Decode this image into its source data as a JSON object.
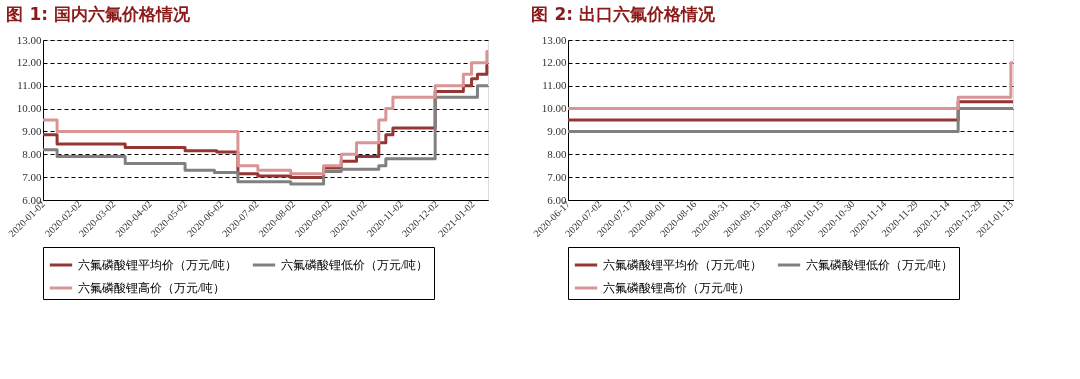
{
  "chart_data": [
    {
      "type": "step",
      "title": "图 1:  国内六氟价格情况",
      "legend": "bottom",
      "grid": "y",
      "xlim": [
        "2020-01-02",
        "2021-01-15"
      ],
      "xticks": [
        "2020-01-02",
        "2020-02-02",
        "2020-03-02",
        "2020-04-02",
        "2020-05-02",
        "2020-06-02",
        "2020-07-02",
        "2020-08-02",
        "2020-09-02",
        "2020-10-02",
        "2020-11-02",
        "2020-12-02",
        "2021-01-02"
      ],
      "ylim": [
        6,
        13
      ],
      "yticks": [
        {
          "value": 6,
          "label": "6.00"
        },
        {
          "value": 7,
          "label": "7.00"
        },
        {
          "value": 8,
          "label": "8.00"
        },
        {
          "value": 9,
          "label": "9.00"
        },
        {
          "value": 10,
          "label": "10.00"
        },
        {
          "value": 11,
          "label": "11.00"
        },
        {
          "value": 12,
          "label": "12.00"
        },
        {
          "value": 13,
          "label": "13.00"
        }
      ],
      "series": [
        {
          "name": "六氟磷酸锂平均价（万元/吨）",
          "color": "#943634",
          "x": [
            "2020-01-02",
            "2020-01-14",
            "2020-03-12",
            "2020-05-02",
            "2020-05-29",
            "2020-06-16",
            "2020-07-03",
            "2020-07-31",
            "2020-08-28",
            "2020-09-12",
            "2020-09-25",
            "2020-10-14",
            "2020-10-20",
            "2020-10-26",
            "2020-12-01",
            "2020-12-25",
            "2021-01-01",
            "2021-01-06",
            "2021-01-14",
            "2021-01-15"
          ],
          "values": [
            8.85,
            8.45,
            8.3,
            8.15,
            8.1,
            7.15,
            7.05,
            6.98,
            7.4,
            7.7,
            7.9,
            8.5,
            8.85,
            9.15,
            10.75,
            11.0,
            11.3,
            11.5,
            11.9,
            11.9
          ]
        },
        {
          "name": "六氟磷酸锂低价（万元/吨）",
          "color": "#808080",
          "x": [
            "2020-01-02",
            "2020-01-14",
            "2020-03-12",
            "2020-05-02",
            "2020-05-27",
            "2020-06-16",
            "2020-07-31",
            "2020-08-28",
            "2020-09-12",
            "2020-10-14",
            "2020-10-20",
            "2020-12-01",
            "2021-01-06",
            "2021-01-15"
          ],
          "values": [
            8.2,
            7.9,
            7.6,
            7.3,
            7.2,
            6.8,
            6.7,
            7.25,
            7.35,
            7.5,
            7.8,
            10.5,
            11.0,
            11.0
          ]
        },
        {
          "name": "六氟磷酸锂高价（万元/吨）",
          "color": "#d99594",
          "x": [
            "2020-01-02",
            "2020-01-14",
            "2020-06-16",
            "2020-07-03",
            "2020-07-31",
            "2020-08-28",
            "2020-09-12",
            "2020-09-25",
            "2020-10-14",
            "2020-10-20",
            "2020-10-26",
            "2020-12-01",
            "2020-12-25",
            "2021-01-01",
            "2021-01-14",
            "2021-01-15"
          ],
          "values": [
            9.5,
            9.0,
            7.5,
            7.3,
            7.15,
            7.5,
            8.0,
            8.5,
            9.5,
            10.0,
            10.5,
            11.0,
            11.5,
            12.0,
            12.5,
            12.5
          ]
        }
      ]
    },
    {
      "type": "step",
      "title": "图 2:  出口六氟价格情况",
      "legend": "bottom",
      "grid": "y",
      "xlim": [
        "2020-06-17",
        "2021-01-14"
      ],
      "xticks": [
        "2020-06-17",
        "2020-07-02",
        "2020-07-17",
        "2020-08-01",
        "2020-08-16",
        "2020-08-31",
        "2020-09-15",
        "2020-09-30",
        "2020-10-15",
        "2020-10-30",
        "2020-11-14",
        "2020-11-29",
        "2020-12-14",
        "2020-12-29",
        "2021-01-13"
      ],
      "ylim": [
        6,
        13
      ],
      "yticks": [
        {
          "value": 6,
          "label": "6.00"
        },
        {
          "value": 7,
          "label": "7.00"
        },
        {
          "value": 8,
          "label": "8.00"
        },
        {
          "value": 9,
          "label": "9.00"
        },
        {
          "value": 10,
          "label": "10.00"
        },
        {
          "value": 11,
          "label": "11.00"
        },
        {
          "value": 12,
          "label": "12.00"
        },
        {
          "value": 13,
          "label": "13.00"
        }
      ],
      "series": [
        {
          "name": "六氟磷酸锂平均价（万元/吨）",
          "color": "#943634",
          "x": [
            "2020-06-17",
            "2020-12-19",
            "2021-01-14"
          ],
          "values": [
            9.5,
            10.3,
            10.3
          ]
        },
        {
          "name": "六氟磷酸锂低价（万元/吨）",
          "color": "#808080",
          "x": [
            "2020-06-17",
            "2020-12-19",
            "2021-01-14"
          ],
          "values": [
            9.0,
            10.0,
            10.0
          ]
        },
        {
          "name": "六氟磷酸锂高价（万元/吨）",
          "color": "#d99594",
          "x": [
            "2020-06-17",
            "2020-12-19",
            "2021-01-13",
            "2021-01-14"
          ],
          "values": [
            10.0,
            10.5,
            12.0,
            12.0
          ]
        }
      ]
    }
  ]
}
